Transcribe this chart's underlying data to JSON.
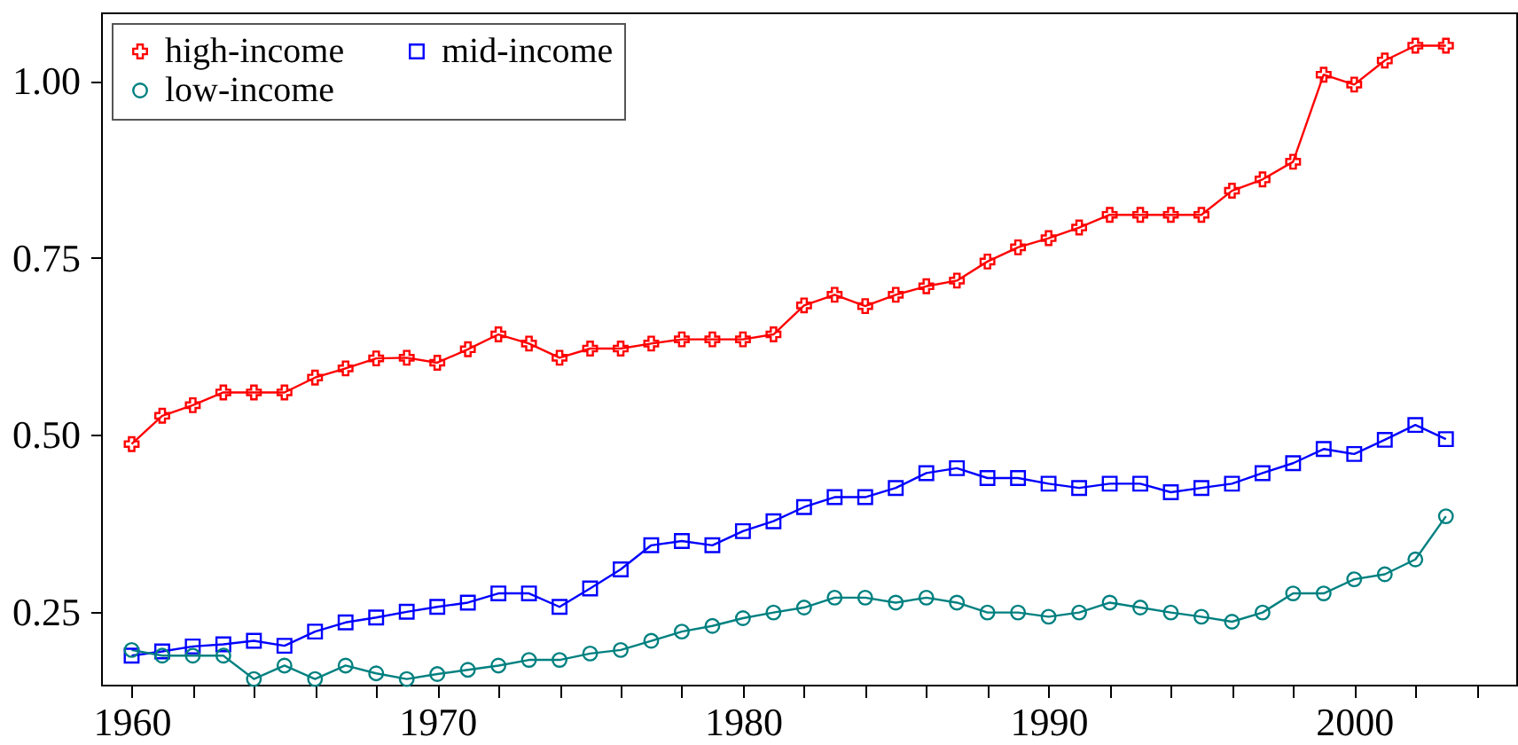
{
  "chart_data": {
    "type": "line",
    "x": [
      1960,
      1961,
      1962,
      1963,
      1964,
      1965,
      1966,
      1967,
      1968,
      1969,
      1970,
      1971,
      1972,
      1973,
      1974,
      1975,
      1976,
      1977,
      1978,
      1979,
      1980,
      1981,
      1982,
      1983,
      1984,
      1985,
      1986,
      1987,
      1988,
      1989,
      1990,
      1991,
      1992,
      1993,
      1994,
      1995,
      1996,
      1997,
      1998,
      1999,
      2000,
      2001,
      2002,
      2003
    ],
    "series": [
      {
        "name": "high-income",
        "color": "#ff0000",
        "marker": "cross",
        "values": [
          0.487,
          0.527,
          0.542,
          0.56,
          0.56,
          0.56,
          0.581,
          0.594,
          0.608,
          0.609,
          0.602,
          0.621,
          0.642,
          0.629,
          0.609,
          0.622,
          0.622,
          0.629,
          0.635,
          0.635,
          0.635,
          0.642,
          0.683,
          0.698,
          0.682,
          0.698,
          0.71,
          0.718,
          0.745,
          0.765,
          0.778,
          0.793,
          0.811,
          0.811,
          0.811,
          0.811,
          0.845,
          0.861,
          0.886,
          1.009,
          0.995,
          1.029,
          1.05,
          1.05
        ]
      },
      {
        "name": "mid-income",
        "color": "#0000ff",
        "marker": "square",
        "values": [
          0.188,
          0.194,
          0.201,
          0.204,
          0.209,
          0.202,
          0.222,
          0.235,
          0.242,
          0.25,
          0.257,
          0.263,
          0.276,
          0.276,
          0.257,
          0.283,
          0.31,
          0.344,
          0.35,
          0.344,
          0.364,
          0.378,
          0.398,
          0.412,
          0.412,
          0.425,
          0.446,
          0.453,
          0.439,
          0.439,
          0.431,
          0.425,
          0.431,
          0.431,
          0.419,
          0.425,
          0.431,
          0.446,
          0.46,
          0.48,
          0.473,
          0.493,
          0.514,
          0.494
        ]
      },
      {
        "name": "low-income",
        "color": "#008080",
        "marker": "circle",
        "values": [
          0.196,
          0.188,
          0.188,
          0.188,
          0.155,
          0.174,
          0.155,
          0.174,
          0.163,
          0.155,
          0.162,
          0.168,
          0.174,
          0.182,
          0.182,
          0.191,
          0.196,
          0.209,
          0.222,
          0.23,
          0.241,
          0.249,
          0.256,
          0.27,
          0.27,
          0.263,
          0.27,
          0.263,
          0.249,
          0.249,
          0.243,
          0.249,
          0.263,
          0.256,
          0.249,
          0.243,
          0.236,
          0.249,
          0.276,
          0.276,
          0.296,
          0.303,
          0.324,
          0.385
        ]
      }
    ],
    "xlim": [
      1959,
      2005.3
    ],
    "xticks": [
      1960,
      {
        "value": 1962,
        "label": null
      },
      {
        "value": 1964,
        "label": null
      },
      {
        "value": 1966,
        "label": null
      },
      {
        "value": 1968,
        "label": null
      },
      1970,
      {
        "value": 1972,
        "label": null
      },
      {
        "value": 1974,
        "label": null
      },
      {
        "value": 1976,
        "label": null
      },
      {
        "value": 1978,
        "label": null
      },
      1980,
      {
        "value": 1982,
        "label": null
      },
      {
        "value": 1984,
        "label": null
      },
      {
        "value": 1986,
        "label": null
      },
      {
        "value": 1988,
        "label": null
      },
      1990,
      {
        "value": 1992,
        "label": null
      },
      {
        "value": 1994,
        "label": null
      },
      {
        "value": 1996,
        "label": null
      },
      {
        "value": 1998,
        "label": null
      },
      2000,
      {
        "value": 2002,
        "label": null
      },
      {
        "value": 2004,
        "label": null
      }
    ],
    "ylim": [
      0.147,
      1.097
    ],
    "yticks": [
      0.25,
      {
        "value": 0.5,
        "label": "0.50"
      },
      0.75,
      {
        "value": 1,
        "label": "1.00"
      }
    ],
    "grid": false,
    "legend": "top left"
  }
}
